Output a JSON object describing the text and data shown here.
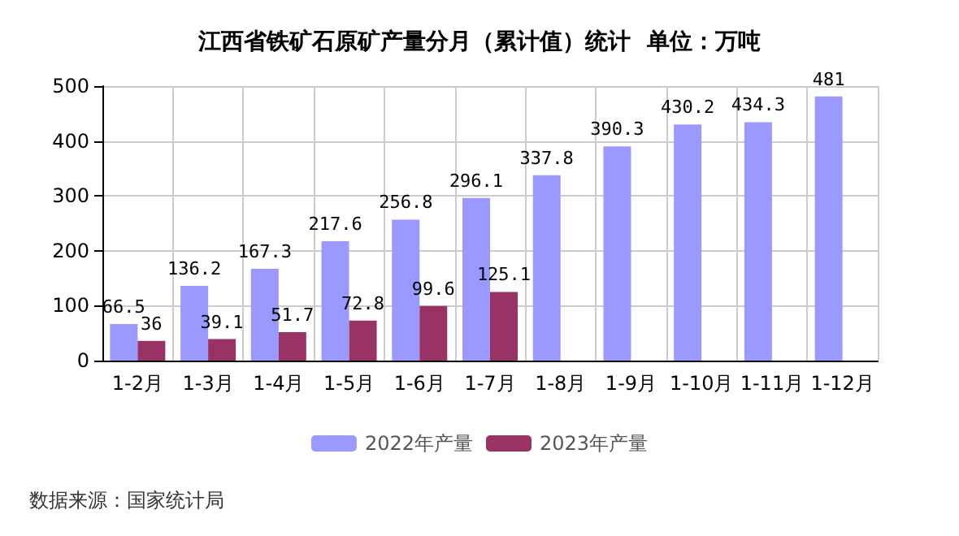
{
  "chart_data": {
    "type": "bar",
    "title": "江西省铁矿石原矿产量分月（累计值）统计  单位：万吨",
    "categories": [
      "1-2月",
      "1-3月",
      "1-4月",
      "1-5月",
      "1-6月",
      "1-7月",
      "1-8月",
      "1-9月",
      "1-10月",
      "1-11月",
      "1-12月"
    ],
    "series": [
      {
        "name": "2022年产量",
        "color": "#9999ff",
        "values": [
          66.5,
          136.2,
          167.3,
          217.6,
          256.8,
          296.1,
          337.8,
          390.3,
          430.2,
          434.3,
          481
        ]
      },
      {
        "name": "2023年产量",
        "color": "#993366",
        "values": [
          36,
          39.1,
          51.7,
          72.8,
          99.6,
          125.1,
          null,
          null,
          null,
          null,
          null
        ]
      }
    ],
    "ylim": [
      0,
      500
    ],
    "yticks": [
      0,
      100,
      200,
      300,
      400,
      500
    ],
    "grid": true,
    "legend": "bottom",
    "data_labels": true,
    "annotations": [
      "数据来源：国家统计局"
    ]
  }
}
